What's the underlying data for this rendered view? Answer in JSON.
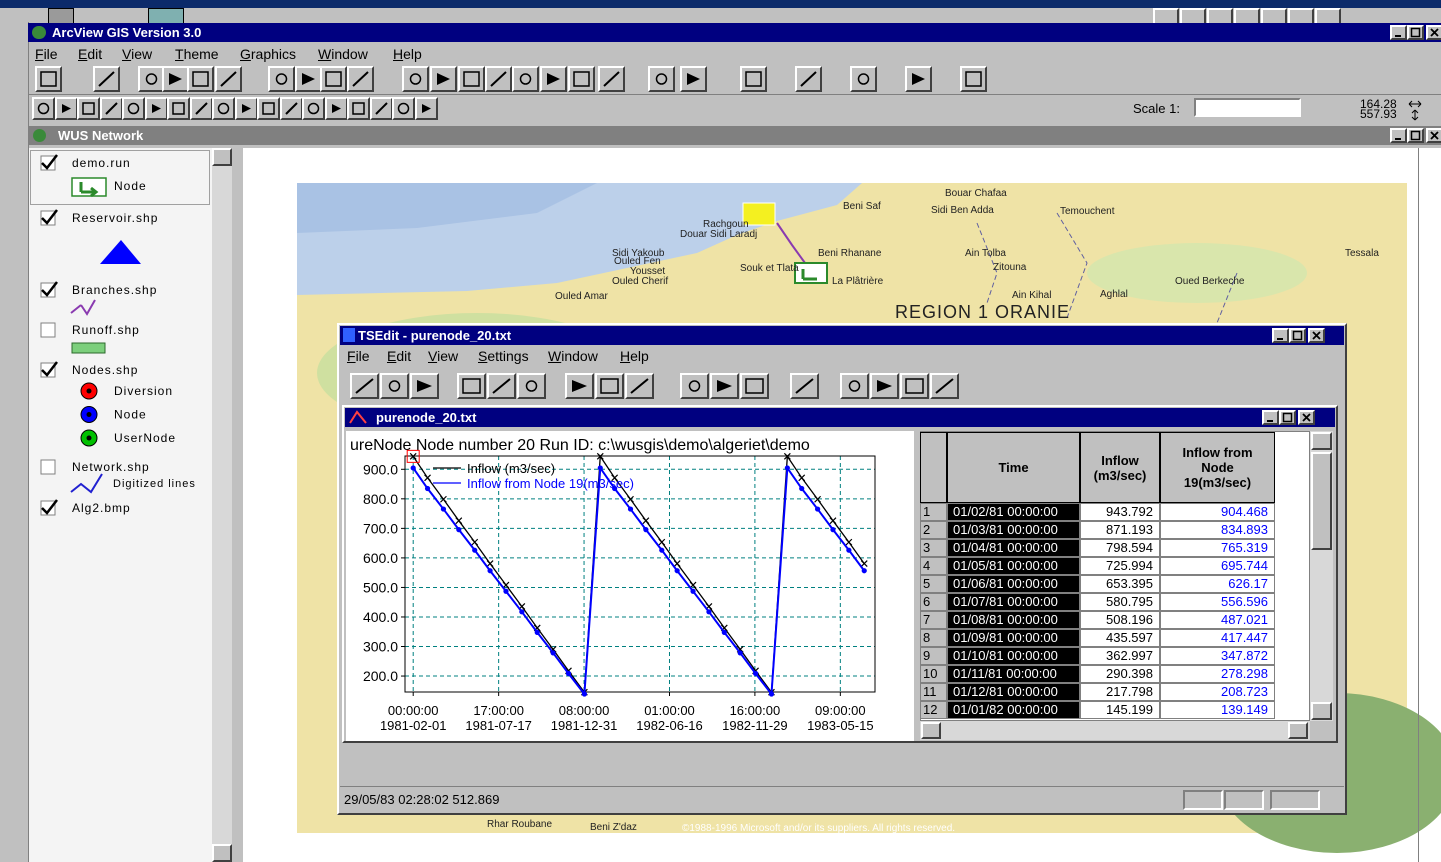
{
  "app": {
    "title": "ArcView GIS Version 3.0",
    "menu": [
      "File",
      "Edit",
      "View",
      "Theme",
      "Graphics",
      "Window",
      "Help"
    ],
    "scale_label": "Scale 1:",
    "coordinates": [
      164.28,
      557.93
    ]
  },
  "view": {
    "title": "WUS Network",
    "themes": [
      {
        "name": "demo.run",
        "checked": true,
        "symbols": [
          "Node"
        ]
      },
      {
        "name": "Reservoir.shp",
        "checked": true
      },
      {
        "name": "Branches.shp",
        "checked": true
      },
      {
        "name": "Runoff.shp",
        "checked": false
      },
      {
        "name": "Nodes.shp",
        "checked": true,
        "symbols": [
          "Diversion",
          "Node",
          "UserNode"
        ]
      },
      {
        "name": "Network.shp",
        "checked": false,
        "symbols": [
          "Digitized lines"
        ]
      },
      {
        "name": "Alg2.bmp",
        "checked": true
      }
    ]
  },
  "map": {
    "labels": [
      "Bouar Chafaa",
      "Temouchent",
      "Beni Saf",
      "Sidi Ben Adda",
      "Rachgoun",
      "Douar Sidi Laradj",
      "Sidi Yakoub",
      "Ouled Fen",
      "Yousset",
      "Ouled Cherif",
      "Souk et Tlata",
      "Beni Rhanane",
      "Ain Tolba",
      "Zitouna",
      "La Plâtrière",
      "Oued Berkeche",
      "Tessala",
      "Ouled Amar",
      "Ain Kihal",
      "Aghlal",
      "Rhar Roubane",
      "Beni Z'daz"
    ],
    "region": "REGION 1 ORANIE",
    "copyright": "©1988-1996 Microsoft and/or its suppliers. All rights reserved."
  },
  "tsedit": {
    "title": "TSEdit - purenode_20.txt",
    "menu": [
      "File",
      "Edit",
      "View",
      "Settings",
      "Window",
      "Help"
    ],
    "document_title": "purenode_20.txt",
    "status": "29/05/83 02:28:02 512.869"
  },
  "table": {
    "time_header": "Time",
    "row_numbers": [
      1,
      2,
      3,
      4,
      5,
      6,
      7,
      8,
      9,
      10,
      11,
      12
    ],
    "times": [
      "01/02/81 00:00:00",
      "01/03/81 00:00:00",
      "01/04/81 00:00:00",
      "01/05/81 00:00:00",
      "01/06/81 00:00:00",
      "01/07/81 00:00:00",
      "01/08/81 00:00:00",
      "01/09/81 00:00:00",
      "01/10/81 00:00:00",
      "01/11/81 00:00:00",
      "01/12/81 00:00:00",
      "01/01/82 00:00:00"
    ]
  },
  "chart_data": {
    "type": "line",
    "title": "ureNode Node number 20 Run ID: c:\\wusgis\\demo\\algeriet\\demo",
    "x": [
      "1981-02-01",
      "1981-03-01",
      "1981-04-01",
      "1981-05-01",
      "1981-06-01",
      "1981-07-01",
      "1981-08-01",
      "1981-09-01",
      "1981-10-01",
      "1981-11-01",
      "1981-12-01",
      "1982-01-01",
      "1982-02-01",
      "1982-03-01",
      "1982-04-01",
      "1982-05-01",
      "1982-06-01",
      "1982-07-01",
      "1982-08-01",
      "1982-09-01",
      "1982-10-01",
      "1982-11-01",
      "1982-12-01",
      "1983-01-01",
      "1983-02-01",
      "1983-03-01",
      "1983-04-01",
      "1983-05-01",
      "1983-06-01",
      "1983-07-01"
    ],
    "series": [
      {
        "name": "Inflow (m3/sec)",
        "color": "#000000",
        "marker": "x",
        "values": [
          943.792,
          871.193,
          798.594,
          725.994,
          653.395,
          580.795,
          508.196,
          435.597,
          362.997,
          290.398,
          217.798,
          145.199,
          943.792,
          871.193,
          798.594,
          725.994,
          653.395,
          580.795,
          508.196,
          435.597,
          362.997,
          290.398,
          217.798,
          145.199,
          943.792,
          871.193,
          798.594,
          725.994,
          653.395,
          580.795
        ]
      },
      {
        "name": "Inflow from Node 19(m3/sec)",
        "color": "#0000ff",
        "marker": "dot",
        "values": [
          904.468,
          834.893,
          765.319,
          695.744,
          626.17,
          556.596,
          487.021,
          417.447,
          347.872,
          278.298,
          208.723,
          139.149,
          904.468,
          834.893,
          765.319,
          695.744,
          626.17,
          556.596,
          487.021,
          417.447,
          347.872,
          278.298,
          208.723,
          139.149,
          904.468,
          834.893,
          765.319,
          695.744,
          626.17,
          556.596
        ]
      }
    ],
    "xlim": [
      "1981-01-16",
      "1983-07-22"
    ],
    "xticks": [
      {
        "value": "1981-02-01T00:00:00",
        "label": [
          "00:00:00",
          "1981-02-01"
        ]
      },
      {
        "value": "1981-07-17T17:00:00",
        "label": [
          "17:00:00",
          "1981-07-17"
        ]
      },
      {
        "value": "1981-12-31T08:00:00",
        "label": [
          "08:00:00",
          "1981-12-31"
        ]
      },
      {
        "value": "1982-06-16T01:00:00",
        "label": [
          "01:00:00",
          "1982-06-16"
        ]
      },
      {
        "value": "1982-11-29T16:00:00",
        "label": [
          "16:00:00",
          "1982-11-29"
        ]
      },
      {
        "value": "1983-05-15T09:00:00",
        "label": [
          "09:00:00",
          "1983-05-15"
        ]
      }
    ],
    "ylim": [
      146,
      945
    ],
    "yticks": [
      {
        "value": 200,
        "label": "200.0"
      },
      {
        "value": 300,
        "label": "300.0"
      },
      {
        "value": 400,
        "label": "400.0"
      },
      {
        "value": 500,
        "label": "500.0"
      },
      {
        "value": 600,
        "label": "600.0"
      },
      {
        "value": 700,
        "label": "700.0"
      },
      {
        "value": 800,
        "label": "800.0"
      },
      {
        "value": 900,
        "label": "900.0"
      }
    ],
    "grid": true,
    "legend": "upper-left"
  }
}
